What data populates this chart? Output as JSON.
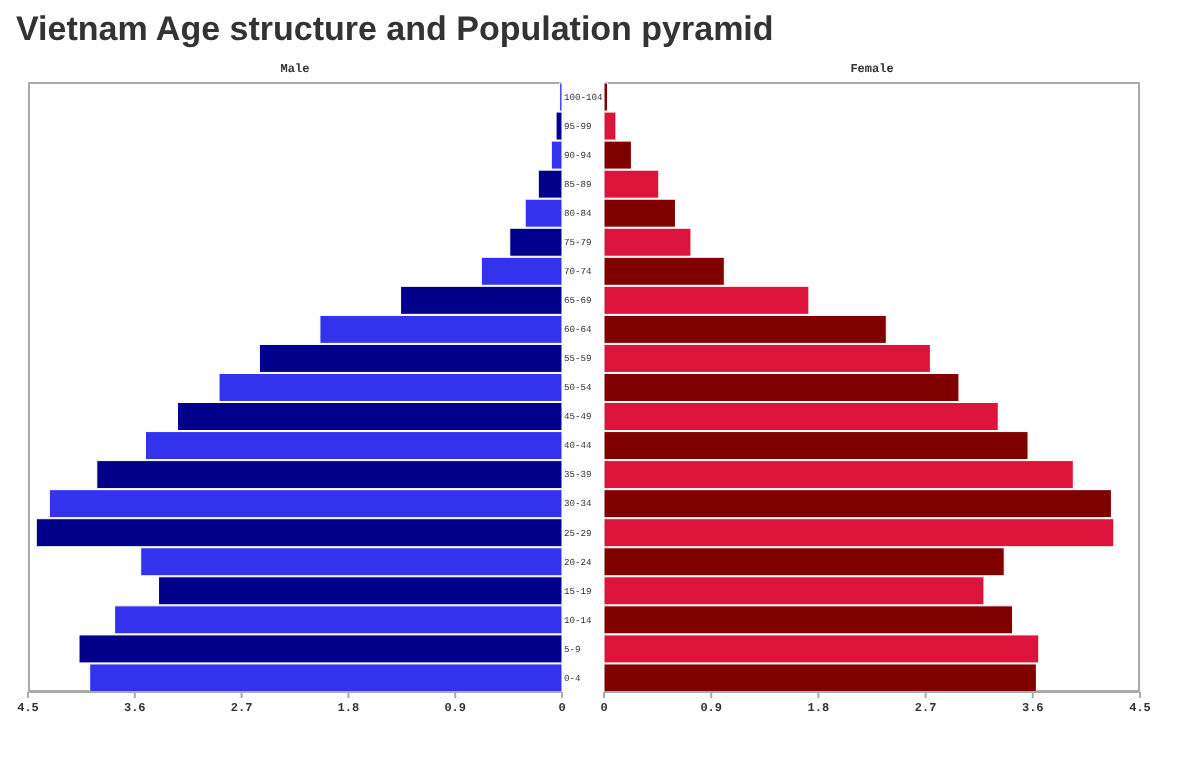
{
  "chart_data": [
    {
      "type": "bar",
      "orientation": "horizontal",
      "title": "Vietnam Age structure and Population pyramid",
      "categories": [
        "100-104",
        "95-99",
        "90-94",
        "85-89",
        "80-84",
        "75-79",
        "70-74",
        "65-69",
        "60-64",
        "55-59",
        "50-54",
        "45-49",
        "40-44",
        "35-39",
        "30-34",
        "25-29",
        "20-24",
        "15-19",
        "10-14",
        "5-9",
        "0-4"
      ],
      "series": [
        {
          "name": "Male",
          "colors": [
            "#3333ee",
            "#00008b",
            "#3333ee",
            "#00008b",
            "#3333ee",
            "#00008b",
            "#3333ee",
            "#00008b",
            "#3333ee",
            "#00008b",
            "#3333ee",
            "#00008b",
            "#3333ee",
            "#00008b",
            "#3333ee",
            "#00008b",
            "#3333ee",
            "#00008b",
            "#3333ee",
            "#00008b",
            "#3333ee"
          ],
          "values": [
            0.02,
            0.05,
            0.09,
            0.2,
            0.31,
            0.44,
            0.68,
            1.36,
            2.04,
            2.55,
            2.89,
            3.24,
            3.51,
            3.92,
            4.32,
            4.43,
            3.55,
            3.4,
            3.77,
            4.07,
            3.98
          ]
        }
      ],
      "xlim": [
        4.5,
        0
      ],
      "xticks": [
        4.5,
        3.6,
        2.7,
        1.8,
        0.9,
        0
      ],
      "grid": false,
      "legend": false
    },
    {
      "type": "bar",
      "orientation": "horizontal",
      "categories": [
        null,
        null,
        null,
        null,
        null,
        null,
        null,
        null,
        null,
        null,
        null,
        null,
        null,
        null,
        null,
        null,
        null,
        null,
        null,
        null,
        null
      ],
      "series": [
        {
          "name": "Female",
          "colors": [
            "#800000",
            "#dc143c",
            "#800000",
            "#dc143c",
            "#800000",
            "#dc143c",
            "#800000",
            "#dc143c",
            "#800000",
            "#dc143c",
            "#800000",
            "#dc143c",
            "#800000",
            "#dc143c",
            "#800000",
            "#dc143c",
            "#800000",
            "#dc143c",
            "#800000",
            "#dc143c",
            "#800000"
          ],
          "values": [
            0.03,
            0.1,
            0.23,
            0.46,
            0.6,
            0.73,
            1.01,
            1.72,
            2.37,
            2.74,
            2.98,
            3.31,
            3.56,
            3.94,
            4.26,
            4.28,
            3.36,
            3.19,
            3.43,
            3.65,
            3.63
          ]
        }
      ],
      "xlim": [
        0,
        4.5
      ],
      "xticks": [
        0,
        0.9,
        1.8,
        2.7,
        3.6,
        4.5
      ],
      "tick_labels": "x",
      "grid": false,
      "legend": false
    }
  ]
}
